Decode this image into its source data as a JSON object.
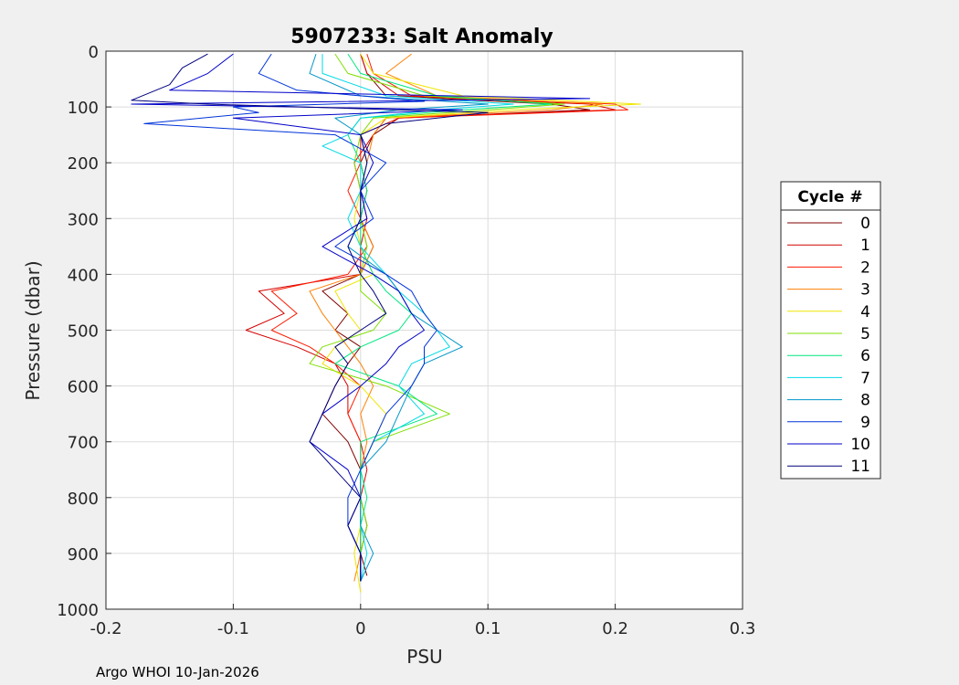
{
  "footer": "Argo WHOI 10-Jan-2026",
  "chart_data": {
    "type": "line",
    "title": "5907233: Salt Anomaly",
    "xlabel": "PSU",
    "ylabel": "Pressure (dbar)",
    "xlim": [
      -0.2,
      0.3
    ],
    "ylim": [
      0,
      1000
    ],
    "y_reversed": true,
    "xticks": [
      -0.2,
      -0.1,
      0,
      0.1,
      0.2,
      0.3
    ],
    "xtick_labels": [
      "-0.2",
      "-0.1",
      "0",
      "0.1",
      "0.2",
      "0.3"
    ],
    "yticks": [
      0,
      100,
      200,
      300,
      400,
      500,
      600,
      700,
      800,
      900,
      1000
    ],
    "ytick_labels": [
      "0",
      "100",
      "200",
      "300",
      "400",
      "500",
      "600",
      "700",
      "800",
      "900",
      "1000"
    ],
    "grid": true,
    "legend_title": "Cycle #",
    "legend_position": "outside-right",
    "series": [
      {
        "name": "0",
        "color": "#7f0000",
        "pressure": [
          5,
          40,
          80,
          95,
          105,
          120,
          150,
          200,
          250,
          300,
          350,
          400,
          430,
          470,
          500,
          530,
          560,
          600,
          650,
          700,
          750,
          800,
          850,
          900,
          940
        ],
        "anomaly": [
          0.0,
          0.005,
          0.02,
          0.15,
          0.18,
          0.03,
          0.01,
          0.0,
          0.005,
          0.0,
          0.01,
          0.0,
          -0.03,
          -0.01,
          -0.02,
          0.0,
          -0.01,
          -0.02,
          -0.03,
          -0.01,
          0.0,
          0.0,
          0.005,
          0.0,
          0.005
        ]
      },
      {
        "name": "1",
        "color": "#d40000",
        "pressure": [
          5,
          40,
          80,
          95,
          105,
          120,
          150,
          200,
          250,
          300,
          350,
          400,
          430,
          470,
          500,
          530,
          560,
          600,
          650,
          700,
          750,
          800,
          850,
          900,
          950
        ],
        "anomaly": [
          0.0,
          0.005,
          0.03,
          0.18,
          0.2,
          0.02,
          0.01,
          -0.005,
          0.0,
          0.005,
          0.0,
          0.0,
          -0.08,
          -0.06,
          -0.09,
          -0.05,
          -0.02,
          -0.01,
          -0.01,
          0.0,
          0.005,
          0.0,
          0.0,
          0.0,
          0.0
        ]
      },
      {
        "name": "2",
        "color": "#ff1a00",
        "pressure": [
          5,
          40,
          80,
          95,
          105,
          120,
          150,
          200,
          250,
          300,
          350,
          400,
          430,
          470,
          500,
          530,
          560,
          600,
          650,
          700,
          750,
          800,
          850,
          900,
          950
        ],
        "anomaly": [
          0.005,
          0.01,
          0.04,
          0.2,
          0.21,
          0.03,
          0.0,
          0.0,
          -0.01,
          0.0,
          0.005,
          -0.01,
          -0.07,
          -0.05,
          -0.07,
          -0.04,
          -0.02,
          0.0,
          -0.01,
          0.0,
          0.0,
          0.0,
          0.0,
          0.0,
          0.0
        ]
      },
      {
        "name": "3",
        "color": "#ff7f00",
        "pressure": [
          5,
          40,
          80,
          95,
          105,
          120,
          150,
          200,
          250,
          300,
          350,
          400,
          430,
          470,
          500,
          530,
          560,
          600,
          650,
          700,
          750,
          800,
          850,
          900,
          950
        ],
        "anomaly": [
          0.04,
          0.02,
          0.06,
          0.19,
          0.15,
          0.02,
          0.01,
          0.005,
          0.0,
          0.0,
          0.01,
          0.0,
          -0.04,
          -0.03,
          -0.02,
          -0.01,
          0.0,
          0.01,
          0.0,
          0.005,
          0.0,
          0.0,
          0.0,
          0.0,
          -0.005
        ]
      },
      {
        "name": "4",
        "color": "#f0e600",
        "pressure": [
          5,
          40,
          80,
          95,
          105,
          120,
          150,
          200,
          250,
          300,
          350,
          400,
          430,
          470,
          500,
          530,
          560,
          600,
          650,
          700,
          750,
          800,
          850,
          900,
          970
        ],
        "anomaly": [
          0.0,
          0.01,
          0.08,
          0.22,
          0.12,
          0.02,
          0.0,
          0.005,
          0.0,
          -0.005,
          0.0,
          0.01,
          -0.02,
          -0.01,
          0.0,
          -0.02,
          -0.03,
          0.0,
          0.02,
          0.01,
          0.0,
          0.0,
          0.0,
          -0.005,
          0.0
        ]
      },
      {
        "name": "5",
        "color": "#7fdf00",
        "pressure": [
          5,
          40,
          80,
          95,
          105,
          120,
          150,
          200,
          250,
          300,
          350,
          400,
          430,
          470,
          500,
          530,
          560,
          600,
          650,
          700,
          750,
          800,
          850,
          900,
          950
        ],
        "anomaly": [
          -0.02,
          -0.01,
          0.05,
          0.16,
          0.1,
          0.01,
          0.0,
          -0.005,
          0.0,
          0.0,
          0.005,
          0.0,
          0.0,
          0.02,
          0.01,
          -0.03,
          -0.04,
          0.02,
          0.07,
          0.01,
          0.0,
          0.0,
          0.005,
          0.0,
          0.0
        ]
      },
      {
        "name": "6",
        "color": "#00e67f",
        "pressure": [
          5,
          40,
          80,
          95,
          105,
          120,
          150,
          200,
          250,
          300,
          350,
          400,
          430,
          470,
          500,
          530,
          560,
          600,
          650,
          700,
          750,
          800,
          850,
          900,
          950
        ],
        "anomaly": [
          -0.01,
          0.0,
          0.06,
          0.15,
          0.08,
          0.0,
          -0.01,
          0.0,
          0.005,
          0.0,
          0.0,
          0.01,
          0.02,
          0.04,
          0.03,
          0.0,
          -0.02,
          0.03,
          0.06,
          0.0,
          0.0,
          0.005,
          0.0,
          0.0,
          0.0
        ]
      },
      {
        "name": "7",
        "color": "#00d9e6",
        "pressure": [
          5,
          40,
          80,
          95,
          105,
          120,
          150,
          170,
          200,
          250,
          300,
          350,
          400,
          430,
          470,
          500,
          530,
          560,
          600,
          650,
          700,
          750,
          800,
          850,
          900,
          950
        ],
        "anomaly": [
          -0.03,
          -0.03,
          0.02,
          0.12,
          0.06,
          0.0,
          -0.01,
          -0.03,
          0.0,
          0.0,
          -0.01,
          0.0,
          0.02,
          0.03,
          0.05,
          0.06,
          0.07,
          0.04,
          0.03,
          0.05,
          0.01,
          0.0,
          0.0,
          0.0,
          0.005,
          0.0
        ]
      },
      {
        "name": "8",
        "color": "#0095c8",
        "pressure": [
          5,
          40,
          80,
          95,
          105,
          120,
          150,
          200,
          250,
          300,
          350,
          400,
          430,
          470,
          500,
          530,
          560,
          600,
          650,
          700,
          750,
          800,
          850,
          900,
          950
        ],
        "anomaly": [
          -0.035,
          -0.04,
          0.0,
          0.1,
          0.03,
          -0.02,
          0.0,
          0.005,
          0.0,
          0.0,
          -0.01,
          0.02,
          0.03,
          0.04,
          0.06,
          0.08,
          0.05,
          0.04,
          0.03,
          0.02,
          0.0,
          0.0,
          0.0,
          0.01,
          0.0
        ]
      },
      {
        "name": "9",
        "color": "#0033d9",
        "pressure": [
          5,
          40,
          70,
          90,
          100,
          110,
          130,
          150,
          200,
          250,
          300,
          350,
          400,
          430,
          470,
          500,
          530,
          560,
          600,
          650,
          700,
          750,
          800,
          850,
          900,
          950
        ],
        "anomaly": [
          -0.07,
          -0.08,
          -0.05,
          0.05,
          -0.1,
          -0.08,
          -0.17,
          -0.02,
          0.02,
          0.0,
          0.01,
          -0.02,
          0.02,
          0.04,
          0.05,
          0.06,
          0.05,
          0.05,
          0.04,
          0.02,
          0.01,
          0.0,
          -0.01,
          -0.01,
          0.0,
          0.0
        ]
      },
      {
        "name": "10",
        "color": "#0000c8",
        "pressure": [
          5,
          40,
          70,
          85,
          95,
          105,
          120,
          150,
          200,
          250,
          300,
          350,
          400,
          430,
          470,
          500,
          530,
          560,
          600,
          650,
          700,
          750,
          800,
          850,
          900,
          950
        ],
        "anomaly": [
          -0.1,
          -0.12,
          -0.15,
          0.18,
          -0.18,
          0.08,
          -0.1,
          0.0,
          0.01,
          0.0,
          0.005,
          -0.03,
          0.01,
          0.03,
          0.04,
          0.05,
          0.03,
          0.02,
          0.0,
          -0.03,
          -0.04,
          -0.01,
          0.0,
          -0.01,
          0.0,
          0.0
        ]
      },
      {
        "name": "11",
        "color": "#00007f",
        "pressure": [
          5,
          30,
          60,
          88,
          95,
          110,
          130,
          150,
          200,
          250,
          300,
          350,
          400,
          430,
          470,
          500,
          530,
          560,
          600,
          650,
          700,
          750,
          800,
          850,
          900,
          950
        ],
        "anomaly": [
          -0.12,
          -0.14,
          -0.15,
          -0.18,
          -0.12,
          0.1,
          0.02,
          0.0,
          0.005,
          0.0,
          0.0,
          -0.01,
          0.0,
          0.01,
          0.02,
          0.0,
          -0.02,
          -0.01,
          -0.02,
          -0.03,
          -0.04,
          -0.02,
          0.0,
          -0.01,
          0.0,
          0.0
        ]
      }
    ]
  }
}
